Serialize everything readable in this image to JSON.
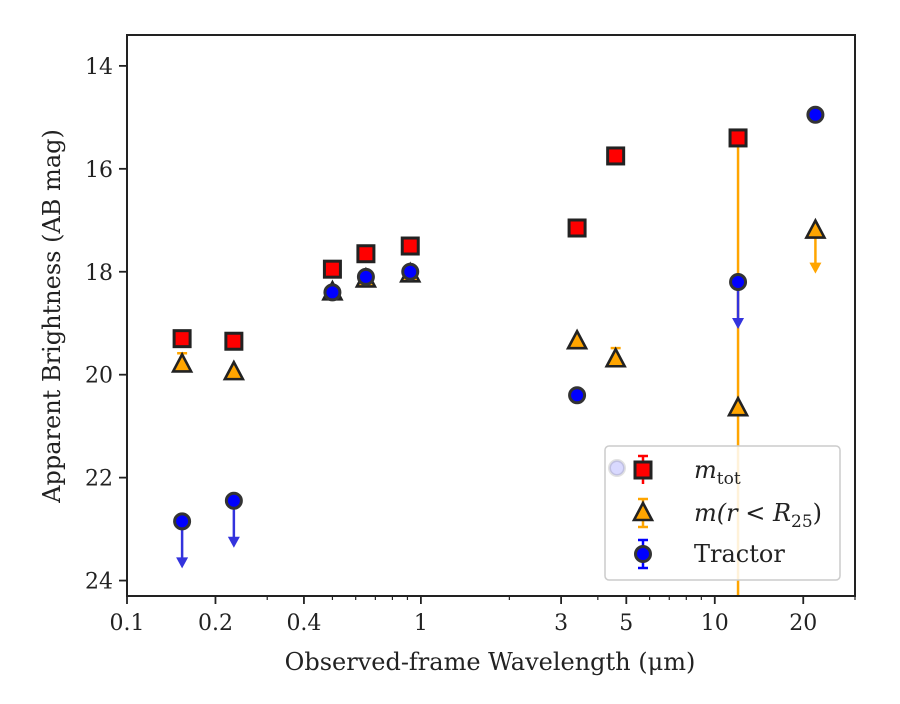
{
  "chart_data": {
    "type": "scatter",
    "xlabel": "Observed-frame Wavelength (μm)",
    "ylabel": "Apparent Brightness (AB mag)",
    "x_scale": "log",
    "xlim": [
      0.1,
      30
    ],
    "ylim": [
      24.3,
      13.4
    ],
    "y_inverted": true,
    "grid": false,
    "legend_position": "lower right",
    "x_ticks": [
      {
        "value": 0.1,
        "label": "0.1"
      },
      {
        "value": 0.2,
        "label": "0.2"
      },
      {
        "value": 0.4,
        "label": "0.4"
      },
      {
        "value": 1,
        "label": "1"
      },
      {
        "value": 3,
        "label": "3"
      },
      {
        "value": 5,
        "label": "5"
      },
      {
        "value": 10,
        "label": "10"
      },
      {
        "value": 20,
        "label": "20"
      }
    ],
    "y_ticks": [
      {
        "value": 14,
        "label": "14"
      },
      {
        "value": 16,
        "label": "16"
      },
      {
        "value": 18,
        "label": "18"
      },
      {
        "value": 20,
        "label": "20"
      },
      {
        "value": 22,
        "label": "22"
      },
      {
        "value": 24,
        "label": "24"
      }
    ],
    "series": [
      {
        "name": "m_tot",
        "legend_label": "m",
        "legend_sub": "tot",
        "marker": "square",
        "color": "#ff0000",
        "edge": "#222222",
        "points": [
          {
            "x": 0.154,
            "y": 19.3
          },
          {
            "x": 0.231,
            "y": 19.35
          },
          {
            "x": 0.5,
            "y": 17.95
          },
          {
            "x": 0.65,
            "y": 17.65
          },
          {
            "x": 0.92,
            "y": 17.5
          },
          {
            "x": 3.4,
            "y": 17.15
          },
          {
            "x": 4.6,
            "y": 15.75
          },
          {
            "x": 12.0,
            "y": 15.4
          }
        ]
      },
      {
        "name": "m(r < R_25)",
        "legend_label": "m(r < R",
        "legend_sub": "25",
        "legend_close": ")",
        "marker": "triangle",
        "color": "#ffa500",
        "edge": "#222222",
        "points": [
          {
            "x": 0.154,
            "y": 19.8,
            "err": 0.1
          },
          {
            "x": 0.231,
            "y": 19.95
          },
          {
            "x": 0.5,
            "y": 18.4
          },
          {
            "x": 0.65,
            "y": 18.15
          },
          {
            "x": 0.92,
            "y": 18.05
          },
          {
            "x": 3.4,
            "y": 19.35
          },
          {
            "x": 4.6,
            "y": 19.7,
            "err": 0.1
          },
          {
            "x": 12.0,
            "y": 20.65,
            "err_low": 24.5,
            "err_high": 15.4
          },
          {
            "x": 22.0,
            "y": 17.2,
            "upper_limit": true
          }
        ]
      },
      {
        "name": "Tractor",
        "legend_label": "Tractor",
        "marker": "circle",
        "color": "#0000ff",
        "edge": "#333333",
        "points": [
          {
            "x": 0.154,
            "y": 22.85,
            "upper_limit": true
          },
          {
            "x": 0.231,
            "y": 22.45,
            "upper_limit": true
          },
          {
            "x": 0.5,
            "y": 18.4
          },
          {
            "x": 0.65,
            "y": 18.1
          },
          {
            "x": 0.92,
            "y": 18.0
          },
          {
            "x": 3.4,
            "y": 20.4
          },
          {
            "x": 12.0,
            "y": 18.2,
            "upper_limit": true
          },
          {
            "x": 22.0,
            "y": 14.95
          }
        ]
      }
    ]
  }
}
